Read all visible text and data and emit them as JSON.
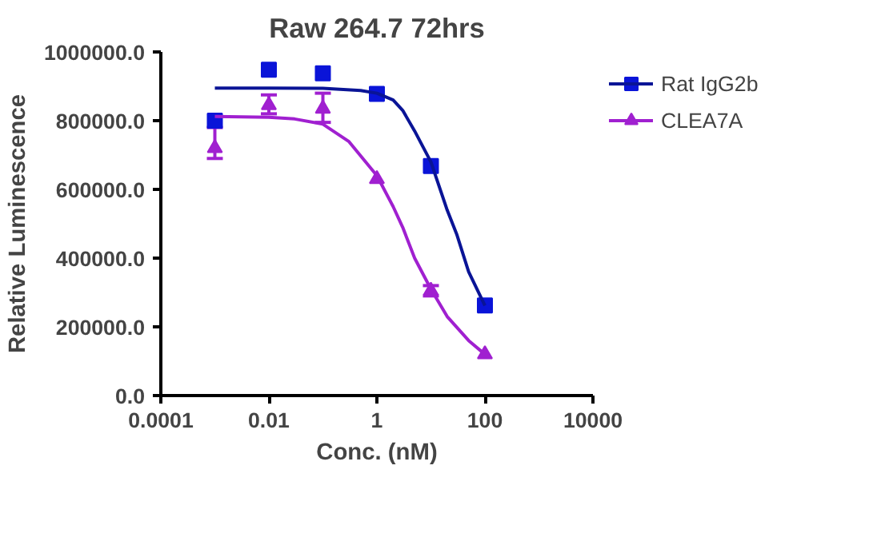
{
  "chart_data": {
    "type": "scatter",
    "title": "Raw 264.7 72hrs",
    "xlabel": "Conc. (nM)",
    "ylabel": "Relative Luminescence",
    "log": "x",
    "xlim": [
      0.0001,
      10000
    ],
    "xticks": [
      0.0001,
      0.01,
      1,
      100,
      10000
    ],
    "ylim": [
      0,
      1000000
    ],
    "yticks": [
      {
        "value": 0,
        "label": "0.0"
      },
      {
        "value": 200000,
        "label": "200000.0"
      },
      {
        "value": 400000,
        "label": "400000.0"
      },
      {
        "value": 600000,
        "label": "600000.0"
      },
      {
        "value": 800000,
        "label": "800000.0"
      },
      {
        "value": 1000000,
        "label": "1000000.0"
      }
    ],
    "grid": false,
    "legend": "top right",
    "series": [
      {
        "name": "Rat IgG2b",
        "marker": "square",
        "color": "#0a14d8",
        "x": [
          0.001,
          0.01,
          0.1,
          1,
          10,
          100
        ],
        "values": [
          800000,
          948000,
          938000,
          878000,
          668000,
          262000
        ]
      },
      {
        "type": "line",
        "color": "#0a1496",
        "x": [
          0.001,
          0.01,
          0.1,
          0.5,
          1,
          2,
          3,
          5,
          10,
          20,
          30,
          50,
          100
        ],
        "values": [
          895000,
          895000,
          894000,
          888000,
          880000,
          860000,
          830000,
          770000,
          680000,
          540000,
          470000,
          360000,
          262000
        ]
      },
      {
        "name": "CLEA7A",
        "marker": "triangle",
        "color": "#a020d0",
        "x": [
          0.001,
          0.01,
          0.1,
          1,
          10,
          100
        ],
        "values": [
          720000,
          845000,
          835000,
          630000,
          305000,
          120000
        ],
        "errors": [
          [
            690000,
            780000
          ],
          [
            820000,
            875000
          ],
          [
            795000,
            880000
          ],
          null,
          [
            290000,
            320000
          ],
          null
        ]
      },
      {
        "type": "line",
        "color": "#a020d0",
        "x": [
          0.001,
          0.01,
          0.03,
          0.1,
          0.3,
          1,
          2,
          3,
          5,
          10,
          20,
          50,
          100
        ],
        "values": [
          812000,
          810000,
          805000,
          790000,
          740000,
          640000,
          550000,
          490000,
          400000,
          310000,
          230000,
          160000,
          120000
        ]
      }
    ]
  }
}
